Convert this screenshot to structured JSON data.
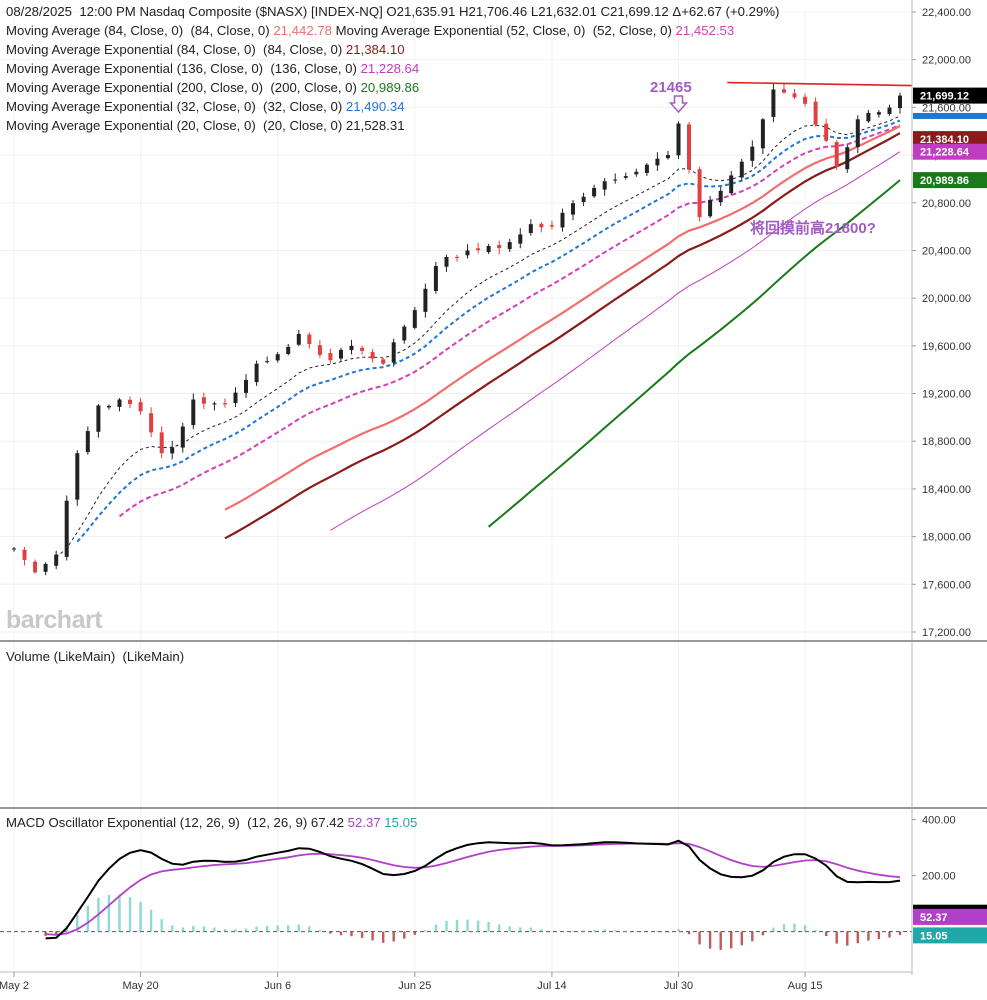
{
  "header": {
    "line1": "08/28/2025  12:00 PM Nasdaq Composite ($NASX) [INDEX-NQ] O21,635.91 H21,706.46 L21,632.01 C21,699.12 Δ+62.67 (+0.29%)",
    "studies": [
      {
        "label": "Moving Average (84, Close, 0)  (84, Close, 0) ",
        "value": "21,442.78",
        "color": "#f26d6d"
      },
      {
        "label": " Moving Average Exponential (52, Close, 0)  (52, Close, 0) ",
        "value": "21,452.53",
        "color": "#d63fb8"
      },
      {
        "label": "Moving Average Exponential (84, Close, 0)  (84, Close, 0) ",
        "value": "21,384.10",
        "color": "#8b1a1a"
      },
      {
        "label": "Moving Average Exponential (136, Close, 0)  (136, Close, 0) ",
        "value": "21,228.64",
        "color": "#c03cc0"
      },
      {
        "label": "Moving Average Exponential (200, Close, 0)  (200, Close, 0) ",
        "value": "20,989.86",
        "color": "#1a7a1a"
      },
      {
        "label": "Moving Average Exponential (32, Close, 0)  (32, Close, 0) ",
        "value": "21,490.34",
        "color": "#1f77d4"
      },
      {
        "label": "Moving Average Exponential (20, Close, 0)  (20, Close, 0) ",
        "value": "21,528.31",
        "color": "#222222"
      }
    ]
  },
  "volume_title": "Volume (LikeMain)  (LikeMain)",
  "macd": {
    "label": "MACD Oscillator Exponential (12, 26, 9)  (12, 26, 9) ",
    "macd_value": "67.42",
    "signal_value": "52.37",
    "hist_value": "15.05",
    "macd_color": "#000000",
    "signal_color": "#b040c8",
    "hist_color": "#20a8a8"
  },
  "watermark": "barchart",
  "annotations": {
    "peak_label": "21465",
    "note": "将回摸前高21800?"
  },
  "colors": {
    "up": "#222222",
    "down": "#e04040",
    "resistance": "#e02020"
  },
  "chart_data": {
    "type": "candlestick",
    "title": "Nasdaq Composite ($NASX)",
    "x_ticks": [
      "May 2",
      "May 20",
      "Jun 6",
      "Jun 25",
      "Jul 14",
      "Jul 30",
      "Aug 15"
    ],
    "y_ticks": [
      "22,400.00",
      "22,000.00",
      "21,600.00",
      "21,200.00",
      "20,800.00",
      "20,400.00",
      "20,000.00",
      "19,600.00",
      "19,200.00",
      "18,800.00",
      "18,400.00",
      "18,000.00",
      "17,600.00",
      "17,200.00"
    ],
    "ylim": [
      17100,
      22500
    ],
    "price_path": [
      [
        "May 2",
        17900
      ],
      [
        "May 6",
        17700
      ],
      [
        "May 8",
        17850
      ],
      [
        "May 12",
        18700
      ],
      [
        "May 14",
        19100
      ],
      [
        "May 16",
        19150
      ],
      [
        "May 20",
        19050
      ],
      [
        "May 22",
        18700
      ],
      [
        "May 23",
        18750
      ],
      [
        "May 27",
        19150
      ],
      [
        "May 30",
        19110
      ],
      [
        "Jun 4",
        19450
      ],
      [
        "Jun 6",
        19530
      ],
      [
        "Jun 10",
        19700
      ],
      [
        "Jun 13",
        19480
      ],
      [
        "Jun 17",
        19600
      ],
      [
        "Jun 20",
        19450
      ],
      [
        "Jun 23",
        19630
      ],
      [
        "Jun 25",
        19900
      ],
      [
        "Jun 27",
        20270
      ],
      [
        "Jul 2",
        20400
      ],
      [
        "Jul 7",
        20420
      ],
      [
        "Jul 10",
        20620
      ],
      [
        "Jul 14",
        20600
      ],
      [
        "Jul 17",
        20850
      ],
      [
        "Jul 21",
        20980
      ],
      [
        "Jul 24",
        21060
      ],
      [
        "Jul 29",
        21200
      ],
      [
        "Jul 30",
        21465
      ],
      [
        "Aug 1",
        20680
      ],
      [
        "Aug 5",
        20900
      ],
      [
        "Aug 8",
        21270
      ],
      [
        "Aug 11",
        21500
      ],
      [
        "Aug 12",
        21750
      ],
      [
        "Aug 15",
        21630
      ],
      [
        "Aug 19",
        21320
      ],
      [
        "Aug 20",
        21100
      ],
      [
        "Aug 22",
        21500
      ],
      [
        "Aug 26",
        21560
      ],
      [
        "Aug 28",
        21699
      ]
    ],
    "moving_averages": [
      {
        "name": "Moving Average (84)",
        "last": 21442.78
      },
      {
        "name": "Moving Average Exponential (52)",
        "last": 21452.53
      },
      {
        "name": "Moving Average Exponential (84)",
        "last": 21384.1
      },
      {
        "name": "Moving Average Exponential (136)",
        "last": 21228.64
      },
      {
        "name": "Moving Average Exponential (200)",
        "last": 20989.86
      },
      {
        "name": "Moving Average Exponential (32)",
        "last": 21490.34
      },
      {
        "name": "Moving Average Exponential (20)",
        "last": 21528.31
      }
    ],
    "price_tags": [
      {
        "value": 21699.12,
        "text": "21,699.12",
        "bg": "#000000"
      },
      {
        "value": 21384.1,
        "text": "21,384.10",
        "bg": "#8b1a1a"
      },
      {
        "value": 21228.64,
        "text": "21,228.64",
        "bg": "#c03cc0"
      },
      {
        "value": 20989.86,
        "text": "20,989.86",
        "bg": "#1a7a1a"
      }
    ],
    "resistance": {
      "from": "Aug 8",
      "to": "Aug 28",
      "value": 21800
    },
    "macd_ticks": [
      "400.00",
      "200.00"
    ],
    "macd_ylim": [
      -130,
      420
    ],
    "macd_tags": [
      {
        "value": 67.42,
        "text": "67.42",
        "bg": "#000000"
      },
      {
        "value": 52.37,
        "text": "52.37",
        "bg": "#b040c8"
      },
      {
        "value": 15.05,
        "text": "15.05",
        "bg": "#20a8a8"
      }
    ]
  }
}
